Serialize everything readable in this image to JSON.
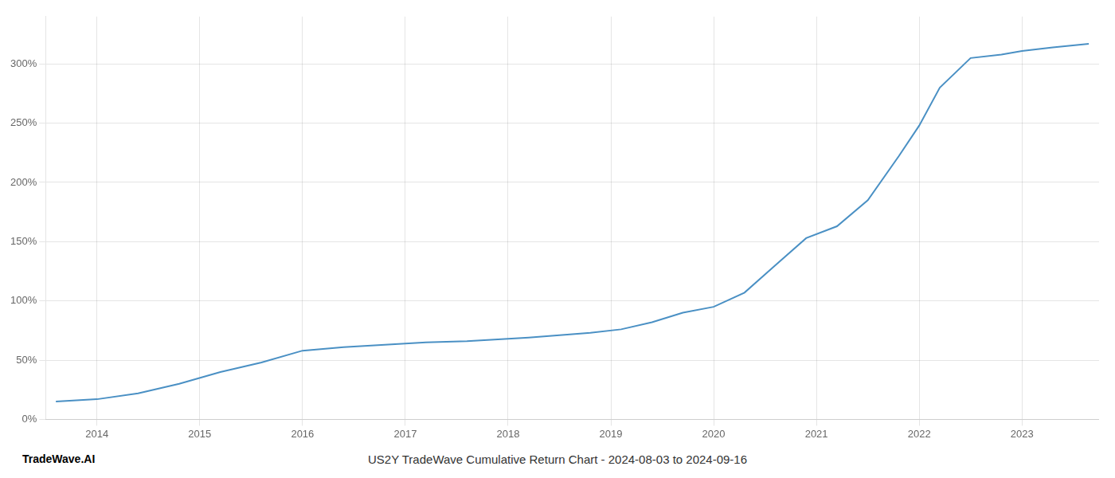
{
  "chart_data": {
    "type": "line",
    "title": "US2Y TradeWave Cumulative Return Chart - 2024-08-03 to 2024-09-16",
    "annotations": [
      "TradeWave.AI"
    ],
    "x": [
      2013.6,
      2014.0,
      2014.4,
      2014.8,
      2015.2,
      2015.6,
      2016.0,
      2016.4,
      2016.8,
      2017.2,
      2017.6,
      2018.0,
      2018.2,
      2018.5,
      2018.8,
      2019.1,
      2019.4,
      2019.7,
      2020.0,
      2020.3,
      2020.6,
      2020.9,
      2021.2,
      2021.5,
      2021.8,
      2022.0,
      2022.2,
      2022.5,
      2022.8,
      2023.0,
      2023.3,
      2023.65
    ],
    "values": [
      15,
      17,
      22,
      30,
      40,
      48,
      58,
      61,
      63,
      65,
      66,
      68,
      69,
      71,
      73,
      76,
      82,
      90,
      95,
      107,
      130,
      153,
      163,
      185,
      222,
      248,
      280,
      305,
      308,
      311,
      314,
      317
    ],
    "color": "#4a90c4",
    "xlim": [
      2013.5,
      2023.75
    ],
    "xticks": [
      2014,
      2015,
      2016,
      2017,
      2018,
      2019,
      2020,
      2021,
      2022,
      2023
    ],
    "ylim": [
      0,
      340
    ],
    "yticks": [
      {
        "value": 0,
        "label": "0%"
      },
      {
        "value": 50,
        "label": "50%"
      },
      {
        "value": 100,
        "label": "100%"
      },
      {
        "value": 150,
        "label": "150%"
      },
      {
        "value": 200,
        "label": "200%"
      },
      {
        "value": 250,
        "label": "250%"
      },
      {
        "value": 300,
        "label": "300%"
      }
    ],
    "grid": true
  }
}
